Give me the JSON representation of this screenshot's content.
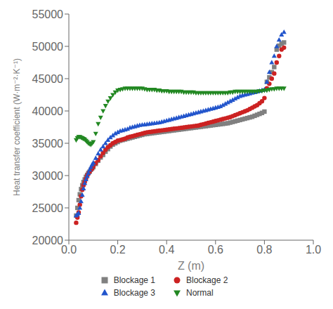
{
  "chart_data": {
    "type": "scatter",
    "xlabel": "Z (m)",
    "ylabel": "Heat transfer coefficient (W·m⁻²·K⁻¹)",
    "xlim": [
      0.0,
      1.0
    ],
    "ylim": [
      20000,
      55000
    ],
    "xticks": [
      {
        "value": 0.0,
        "label": "0.0"
      },
      0.2,
      0.4,
      0.6,
      0.8,
      {
        "value": 1.0,
        "label": "1.0"
      }
    ],
    "yticks": [
      20000,
      25000,
      30000,
      35000,
      40000,
      45000,
      50000,
      55000
    ],
    "grid": false,
    "legend": "bottom",
    "x": [
      0.03,
      0.035,
      0.04,
      0.045,
      0.05,
      0.055,
      0.06,
      0.065,
      0.07,
      0.075,
      0.08,
      0.085,
      0.09,
      0.095,
      0.1,
      0.11,
      0.12,
      0.13,
      0.14,
      0.15,
      0.16,
      0.17,
      0.18,
      0.19,
      0.2,
      0.21,
      0.22,
      0.23,
      0.24,
      0.25,
      0.26,
      0.27,
      0.28,
      0.29,
      0.3,
      0.31,
      0.32,
      0.33,
      0.34,
      0.35,
      0.36,
      0.37,
      0.38,
      0.39,
      0.4,
      0.41,
      0.42,
      0.43,
      0.44,
      0.45,
      0.46,
      0.47,
      0.48,
      0.49,
      0.5,
      0.51,
      0.52,
      0.53,
      0.54,
      0.55,
      0.56,
      0.57,
      0.58,
      0.59,
      0.6,
      0.61,
      0.62,
      0.63,
      0.64,
      0.65,
      0.66,
      0.67,
      0.68,
      0.69,
      0.7,
      0.71,
      0.72,
      0.73,
      0.74,
      0.75,
      0.76,
      0.77,
      0.78,
      0.79,
      0.8,
      0.81,
      0.82,
      0.83,
      0.84,
      0.85,
      0.86,
      0.87,
      0.88
    ],
    "series": [
      {
        "name": "Blockage 1",
        "color": "#808080",
        "marker": "square",
        "values": [
          23800,
          25000,
          26200,
          27100,
          27900,
          28500,
          29000,
          29400,
          29800,
          30100,
          30400,
          30600,
          30900,
          31100,
          31300,
          31800,
          32300,
          32800,
          33200,
          33700,
          34100,
          34500,
          34800,
          35000,
          35200,
          35400,
          35500,
          35600,
          35700,
          35800,
          35900,
          36000,
          36100,
          36200,
          36300,
          36400,
          36450,
          36500,
          36550,
          36600,
          36650,
          36700,
          36750,
          36800,
          36850,
          36900,
          36950,
          37000,
          37050,
          37100,
          37150,
          37200,
          37250,
          37300,
          37350,
          37400,
          37450,
          37500,
          37550,
          37600,
          37650,
          37700,
          37750,
          37800,
          37850,
          37900,
          37950,
          38000,
          38050,
          38100,
          38200,
          38300,
          38400,
          38500,
          38600,
          38700,
          38800,
          38900,
          39000,
          39100,
          39250,
          39400,
          39550,
          39700,
          39900,
          44500,
          45200,
          46000,
          46800,
          49500,
          50100,
          50400,
          50600
        ]
      },
      {
        "name": "Blockage 2",
        "color": "#cc2222",
        "marker": "circle",
        "values": [
          22700,
          23500,
          24300,
          25500,
          26800,
          27800,
          28500,
          29000,
          29500,
          30000,
          30300,
          30600,
          30900,
          31100,
          31400,
          31900,
          32400,
          33000,
          33500,
          34000,
          34400,
          34700,
          35000,
          35200,
          35400,
          35500,
          35600,
          35700,
          35900,
          36000,
          36100,
          36200,
          36300,
          36400,
          36500,
          36600,
          36700,
          36750,
          36800,
          36850,
          36900,
          36950,
          37000,
          37050,
          37100,
          37150,
          37200,
          37250,
          37300,
          37350,
          37400,
          37450,
          37500,
          37550,
          37600,
          37650,
          37700,
          37750,
          37850,
          37950,
          38050,
          38150,
          38250,
          38350,
          38450,
          38550,
          38650,
          38750,
          38850,
          38950,
          39050,
          39200,
          39350,
          39500,
          39650,
          39800,
          39950,
          40100,
          40300,
          40500,
          40700,
          40900,
          41200,
          41500,
          42000,
          43500,
          44200,
          45000,
          45800,
          47500,
          48500,
          49500,
          49800
        ]
      },
      {
        "name": "Blockage 3",
        "color": "#2255cc",
        "marker": "triangle",
        "values": [
          23800,
          24000,
          24200,
          25000,
          26000,
          27000,
          28000,
          28800,
          29400,
          29900,
          30400,
          30900,
          31300,
          31700,
          32000,
          32700,
          33400,
          34000,
          34500,
          35000,
          35500,
          35900,
          36200,
          36500,
          36700,
          36900,
          37000,
          37100,
          37200,
          37400,
          37500,
          37600,
          37700,
          37800,
          37850,
          37900,
          37950,
          38000,
          38050,
          38100,
          38150,
          38200,
          38300,
          38400,
          38500,
          38600,
          38700,
          38800,
          38900,
          39000,
          39100,
          39200,
          39300,
          39400,
          39500,
          39600,
          39700,
          39800,
          39900,
          40000,
          40100,
          40200,
          40300,
          40400,
          40500,
          40600,
          40700,
          40900,
          41100,
          41300,
          41500,
          41700,
          41900,
          42100,
          42300,
          42400,
          42500,
          42600,
          42700,
          42800,
          42900,
          43000,
          43100,
          43200,
          43300,
          44500,
          46000,
          47500,
          48500,
          50000,
          51000,
          51800,
          52200
        ]
      },
      {
        "name": "Normal",
        "color": "#228822",
        "marker": "triangle_down",
        "values": [
          35500,
          35800,
          36000,
          36000,
          35900,
          35800,
          35700,
          35600,
          35400,
          35200,
          35000,
          34900,
          34800,
          35000,
          35200,
          36500,
          38000,
          39000,
          40000,
          40800,
          41500,
          42000,
          42500,
          42900,
          43200,
          43300,
          43400,
          43500,
          43500,
          43500,
          43500,
          43500,
          43500,
          43500,
          43500,
          43400,
          43300,
          43300,
          43300,
          43300,
          43200,
          43200,
          43100,
          43100,
          43100,
          43000,
          43000,
          43000,
          43000,
          43000,
          43000,
          42900,
          42900,
          42900,
          42900,
          42900,
          42800,
          42800,
          42800,
          42800,
          42800,
          42800,
          42800,
          42800,
          42800,
          42800,
          42800,
          42800,
          42800,
          42800,
          42900,
          42900,
          43000,
          43000,
          43000,
          43000,
          43000,
          43000,
          43000,
          43000,
          43000,
          43000,
          43100,
          43100,
          43200,
          43200,
          43300,
          43400,
          43400,
          43500,
          43500,
          43500,
          43500
        ]
      }
    ]
  }
}
